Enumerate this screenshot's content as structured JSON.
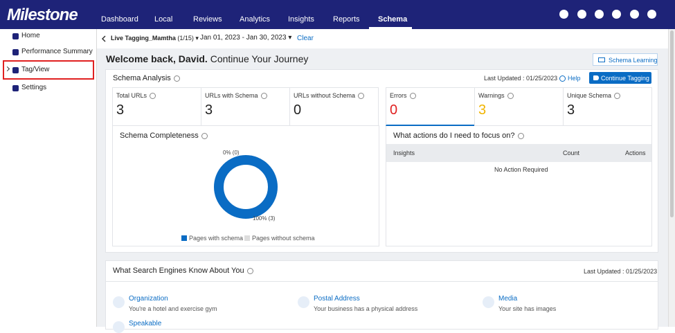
{
  "brand": "Milestone",
  "nav": {
    "tabs": [
      "Dashboard",
      "Local",
      "Reviews",
      "Analytics",
      "Insights",
      "Reports",
      "Schema"
    ],
    "active": 6
  },
  "sidebar": {
    "items": [
      "Home",
      "Performance Summary",
      "Tag/View",
      "Settings"
    ],
    "selected": 2
  },
  "toolbar": {
    "site": "Live Tagging_Mamtha",
    "count": "(1/15)",
    "dates": "Jan 01, 2023 - Jan 30, 2023",
    "clear": "Clear"
  },
  "welcome": {
    "name": "Welcome back, David.",
    "rest": "Continue Your Journey"
  },
  "schema_learning": "Schema Learning",
  "schema_analysis": {
    "title": "Schema Analysis",
    "last_updated": "Last Updated : 01/25/2023",
    "help": "Help",
    "button": "Continue Tagging",
    "stats": [
      {
        "label": "Total URLs",
        "value": 3
      },
      {
        "label": "URLs with Schema",
        "value": 3
      },
      {
        "label": "URLs without Schema",
        "value": 0
      },
      {
        "label": "Errors",
        "value": 0,
        "color": "#e02020"
      },
      {
        "label": "Warnings",
        "value": 3,
        "color": "#f0b400"
      },
      {
        "label": "Unique Schema",
        "value": 3
      }
    ]
  },
  "completeness": {
    "title": "Schema Completeness",
    "segments": [
      {
        "name": "Pages with schema",
        "value": 3,
        "label": "100% (3)",
        "color": "#0a6cc4"
      },
      {
        "name": "Pages without schema",
        "value": 0,
        "label": "0% (0)",
        "color": "#dddddd"
      }
    ]
  },
  "actions": {
    "title": "What actions do I need to focus on?",
    "columns": [
      "Insights",
      "Count",
      "Actions"
    ],
    "empty": "No Action Required"
  },
  "search_engines": {
    "title": "What Search Engines Know About You",
    "last_updated": "Last Updated : 01/25/2023",
    "items": [
      {
        "title": "Organization",
        "desc": "You're a hotel and exercise gym"
      },
      {
        "title": "Postal Address",
        "desc": "Your business has a physical address"
      },
      {
        "title": "Media",
        "desc": "Your site has images"
      },
      {
        "title": "Speakable"
      }
    ]
  }
}
